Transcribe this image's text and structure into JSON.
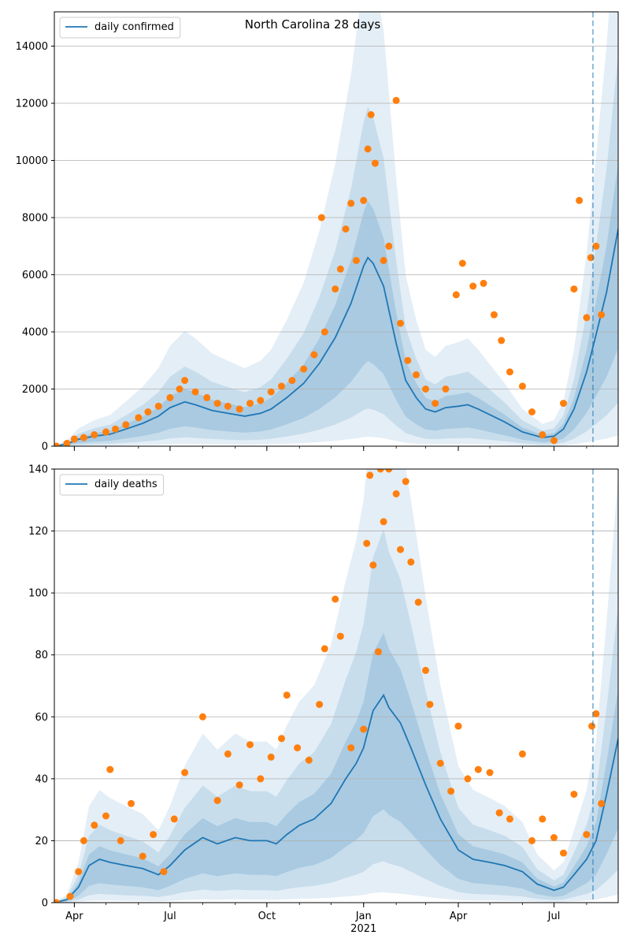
{
  "chart_data": [
    {
      "type": "line",
      "title": "North Carolina 28 days",
      "xlabel": "",
      "ylabel": "",
      "x_range": [
        "2020-03-13",
        "2021-08-31"
      ],
      "ylim": [
        0,
        15200
      ],
      "grid": "horizontal",
      "legend": {
        "position": "top-left",
        "entries": [
          "daily confirmed"
        ]
      },
      "x_ticks": [
        {
          "label": "Apr",
          "date": "2020-04-01"
        },
        {
          "label": "Jul",
          "date": "2020-07-01"
        },
        {
          "label": "Oct",
          "date": "2020-10-01"
        },
        {
          "label": "Jan",
          "date": "2021-01-01"
        },
        {
          "label": "Apr",
          "date": "2021-04-01"
        },
        {
          "label": "Jul",
          "date": "2021-07-01"
        }
      ],
      "y_ticks": [
        0,
        2000,
        4000,
        6000,
        8000,
        10000,
        12000,
        14000
      ],
      "forecast_start": "2021-08-07",
      "series": [
        {
          "name": "daily confirmed",
          "style": "line",
          "color": "#1f77b4",
          "points": [
            [
              "2020-03-13",
              0
            ],
            [
              "2020-03-25",
              80
            ],
            [
              "2020-04-05",
              240
            ],
            [
              "2020-04-20",
              350
            ],
            [
              "2020-05-05",
              420
            ],
            [
              "2020-05-20",
              600
            ],
            [
              "2020-06-05",
              800
            ],
            [
              "2020-06-20",
              1050
            ],
            [
              "2020-07-01",
              1350
            ],
            [
              "2020-07-15",
              1550
            ],
            [
              "2020-07-25",
              1450
            ],
            [
              "2020-08-10",
              1250
            ],
            [
              "2020-08-25",
              1150
            ],
            [
              "2020-09-10",
              1050
            ],
            [
              "2020-09-25",
              1150
            ],
            [
              "2020-10-05",
              1300
            ],
            [
              "2020-10-20",
              1700
            ],
            [
              "2020-11-05",
              2200
            ],
            [
              "2020-11-20",
              2900
            ],
            [
              "2020-12-05",
              3800
            ],
            [
              "2020-12-20",
              5000
            ],
            [
              "2021-01-01",
              6300
            ],
            [
              "2021-01-05",
              6600
            ],
            [
              "2021-01-10",
              6400
            ],
            [
              "2021-01-20",
              5600
            ],
            [
              "2021-02-01",
              3600
            ],
            [
              "2021-02-10",
              2300
            ],
            [
              "2021-02-20",
              1700
            ],
            [
              "2021-03-01",
              1300
            ],
            [
              "2021-03-10",
              1200
            ],
            [
              "2021-03-20",
              1350
            ],
            [
              "2021-04-01",
              1400
            ],
            [
              "2021-04-10",
              1450
            ],
            [
              "2021-04-20",
              1300
            ],
            [
              "2021-05-01",
              1100
            ],
            [
              "2021-05-15",
              850
            ],
            [
              "2021-06-01",
              500
            ],
            [
              "2021-06-20",
              300
            ],
            [
              "2021-07-01",
              350
            ],
            [
              "2021-07-10",
              600
            ],
            [
              "2021-07-20",
              1300
            ],
            [
              "2021-08-01",
              2600
            ],
            [
              "2021-08-10",
              3900
            ],
            [
              "2021-08-20",
              5400
            ],
            [
              "2021-08-31",
              7600
            ]
          ]
        },
        {
          "name": "",
          "style": "points",
          "color": "#ff7f0e",
          "points": [
            [
              "2020-03-15",
              0
            ],
            [
              "2020-03-25",
              100
            ],
            [
              "2020-04-01",
              250
            ],
            [
              "2020-04-10",
              300
            ],
            [
              "2020-04-20",
              400
            ],
            [
              "2020-05-01",
              500
            ],
            [
              "2020-05-10",
              600
            ],
            [
              "2020-05-20",
              750
            ],
            [
              "2020-06-01",
              1000
            ],
            [
              "2020-06-10",
              1200
            ],
            [
              "2020-06-20",
              1400
            ],
            [
              "2020-07-01",
              1700
            ],
            [
              "2020-07-10",
              2000
            ],
            [
              "2020-07-15",
              2300
            ],
            [
              "2020-07-25",
              1900
            ],
            [
              "2020-08-05",
              1700
            ],
            [
              "2020-08-15",
              1500
            ],
            [
              "2020-08-25",
              1400
            ],
            [
              "2020-09-05",
              1300
            ],
            [
              "2020-09-15",
              1500
            ],
            [
              "2020-09-25",
              1600
            ],
            [
              "2020-10-05",
              1900
            ],
            [
              "2020-10-15",
              2100
            ],
            [
              "2020-10-25",
              2300
            ],
            [
              "2020-11-05",
              2700
            ],
            [
              "2020-11-15",
              3200
            ],
            [
              "2020-11-22",
              8000
            ],
            [
              "2020-11-25",
              4000
            ],
            [
              "2020-12-05",
              5500
            ],
            [
              "2020-12-10",
              6200
            ],
            [
              "2020-12-15",
              7600
            ],
            [
              "2020-12-20",
              8500
            ],
            [
              "2020-12-25",
              6500
            ],
            [
              "2021-01-01",
              8600
            ],
            [
              "2021-01-05",
              10400
            ],
            [
              "2021-01-08",
              11600
            ],
            [
              "2021-01-12",
              9900
            ],
            [
              "2021-01-20",
              6500
            ],
            [
              "2021-01-25",
              7000
            ],
            [
              "2021-02-01",
              12100
            ],
            [
              "2021-02-05",
              4300
            ],
            [
              "2021-02-12",
              3000
            ],
            [
              "2021-02-20",
              2500
            ],
            [
              "2021-03-01",
              2000
            ],
            [
              "2021-03-10",
              1500
            ],
            [
              "2021-03-20",
              2000
            ],
            [
              "2021-03-30",
              5300
            ],
            [
              "2021-04-05",
              6400
            ],
            [
              "2021-04-15",
              5600
            ],
            [
              "2021-04-25",
              5700
            ],
            [
              "2021-05-05",
              4600
            ],
            [
              "2021-05-12",
              3700
            ],
            [
              "2021-05-20",
              2600
            ],
            [
              "2021-06-01",
              2100
            ],
            [
              "2021-06-10",
              1200
            ],
            [
              "2021-06-20",
              400
            ],
            [
              "2021-07-01",
              200
            ],
            [
              "2021-07-10",
              1500
            ],
            [
              "2021-07-20",
              5500
            ],
            [
              "2021-07-25",
              8600
            ],
            [
              "2021-08-01",
              4500
            ],
            [
              "2021-08-05",
              6600
            ],
            [
              "2021-08-10",
              7000
            ],
            [
              "2021-08-15",
              4600
            ]
          ]
        }
      ]
    },
    {
      "type": "line",
      "title": "",
      "xlabel": "2021",
      "ylabel": "",
      "x_range": [
        "2020-03-13",
        "2021-08-31"
      ],
      "ylim": [
        0,
        140
      ],
      "grid": "horizontal",
      "legend": {
        "position": "top-left",
        "entries": [
          "daily deaths"
        ]
      },
      "x_ticks": [
        {
          "label": "Apr",
          "date": "2020-04-01"
        },
        {
          "label": "Jul",
          "date": "2020-07-01"
        },
        {
          "label": "Oct",
          "date": "2020-10-01"
        },
        {
          "label": "Jan",
          "date": "2021-01-01"
        },
        {
          "label": "Apr",
          "date": "2021-04-01"
        },
        {
          "label": "Jul",
          "date": "2021-07-01"
        }
      ],
      "y_ticks": [
        0,
        20,
        40,
        60,
        80,
        100,
        120,
        140
      ],
      "forecast_start": "2021-08-07",
      "series": [
        {
          "name": "daily deaths",
          "style": "line",
          "color": "#1f77b4",
          "points": [
            [
              "2020-03-13",
              0
            ],
            [
              "2020-03-25",
              1
            ],
            [
              "2020-04-05",
              5
            ],
            [
              "2020-04-15",
              12
            ],
            [
              "2020-04-25",
              14
            ],
            [
              "2020-05-05",
              13
            ],
            [
              "2020-05-20",
              12
            ],
            [
              "2020-06-05",
              11
            ],
            [
              "2020-06-20",
              9
            ],
            [
              "2020-07-01",
              12
            ],
            [
              "2020-07-15",
              17
            ],
            [
              "2020-08-01",
              21
            ],
            [
              "2020-08-15",
              19
            ],
            [
              "2020-09-01",
              21
            ],
            [
              "2020-09-15",
              20
            ],
            [
              "2020-10-01",
              20
            ],
            [
              "2020-10-10",
              19
            ],
            [
              "2020-10-20",
              22
            ],
            [
              "2020-11-01",
              25
            ],
            [
              "2020-11-15",
              27
            ],
            [
              "2020-12-01",
              32
            ],
            [
              "2020-12-15",
              40
            ],
            [
              "2020-12-25",
              45
            ],
            [
              "2021-01-01",
              50
            ],
            [
              "2021-01-10",
              62
            ],
            [
              "2021-01-20",
              67
            ],
            [
              "2021-01-25",
              63
            ],
            [
              "2021-02-05",
              58
            ],
            [
              "2021-02-15",
              50
            ],
            [
              "2021-03-01",
              38
            ],
            [
              "2021-03-15",
              27
            ],
            [
              "2021-04-01",
              17
            ],
            [
              "2021-04-15",
              14
            ],
            [
              "2021-05-01",
              13
            ],
            [
              "2021-05-15",
              12
            ],
            [
              "2021-06-01",
              10
            ],
            [
              "2021-06-15",
              6
            ],
            [
              "2021-07-01",
              4
            ],
            [
              "2021-07-10",
              5
            ],
            [
              "2021-07-20",
              9
            ],
            [
              "2021-08-01",
              14
            ],
            [
              "2021-08-10",
              20
            ],
            [
              "2021-08-20",
              35
            ],
            [
              "2021-08-31",
              53
            ]
          ]
        },
        {
          "name": "",
          "style": "points",
          "color": "#ff7f0e",
          "points": [
            [
              "2020-03-15",
              0
            ],
            [
              "2020-03-28",
              2
            ],
            [
              "2020-04-05",
              10
            ],
            [
              "2020-04-10",
              20
            ],
            [
              "2020-04-20",
              25
            ],
            [
              "2020-05-01",
              28
            ],
            [
              "2020-05-05",
              43
            ],
            [
              "2020-05-15",
              20
            ],
            [
              "2020-05-25",
              32
            ],
            [
              "2020-06-05",
              15
            ],
            [
              "2020-06-15",
              22
            ],
            [
              "2020-06-25",
              10
            ],
            [
              "2020-07-05",
              27
            ],
            [
              "2020-07-15",
              42
            ],
            [
              "2020-08-01",
              60
            ],
            [
              "2020-08-15",
              33
            ],
            [
              "2020-08-25",
              48
            ],
            [
              "2020-09-05",
              38
            ],
            [
              "2020-09-15",
              51
            ],
            [
              "2020-09-25",
              40
            ],
            [
              "2020-10-05",
              47
            ],
            [
              "2020-10-15",
              53
            ],
            [
              "2020-10-20",
              67
            ],
            [
              "2020-10-30",
              50
            ],
            [
              "2020-11-10",
              46
            ],
            [
              "2020-11-20",
              64
            ],
            [
              "2020-11-25",
              82
            ],
            [
              "2020-12-05",
              98
            ],
            [
              "2020-12-10",
              86
            ],
            [
              "2020-12-20",
              50
            ],
            [
              "2021-01-01",
              56
            ],
            [
              "2021-01-04",
              116
            ],
            [
              "2021-01-07",
              138
            ],
            [
              "2021-01-10",
              109
            ],
            [
              "2021-01-15",
              81
            ],
            [
              "2021-01-17",
              140
            ],
            [
              "2021-01-20",
              123
            ],
            [
              "2021-01-25",
              140
            ],
            [
              "2021-02-01",
              132
            ],
            [
              "2021-02-05",
              114
            ],
            [
              "2021-02-10",
              136
            ],
            [
              "2021-02-15",
              110
            ],
            [
              "2021-02-22",
              97
            ],
            [
              "2021-03-01",
              75
            ],
            [
              "2021-03-05",
              64
            ],
            [
              "2021-03-15",
              45
            ],
            [
              "2021-03-25",
              36
            ],
            [
              "2021-04-01",
              57
            ],
            [
              "2021-04-10",
              40
            ],
            [
              "2021-04-20",
              43
            ],
            [
              "2021-05-01",
              42
            ],
            [
              "2021-05-10",
              29
            ],
            [
              "2021-05-20",
              27
            ],
            [
              "2021-06-01",
              48
            ],
            [
              "2021-06-10",
              20
            ],
            [
              "2021-06-20",
              27
            ],
            [
              "2021-07-01",
              21
            ],
            [
              "2021-07-10",
              16
            ],
            [
              "2021-07-20",
              35
            ],
            [
              "2021-08-01",
              22
            ],
            [
              "2021-08-06",
              57
            ],
            [
              "2021-08-10",
              61
            ],
            [
              "2021-08-15",
              32
            ]
          ]
        }
      ]
    }
  ]
}
